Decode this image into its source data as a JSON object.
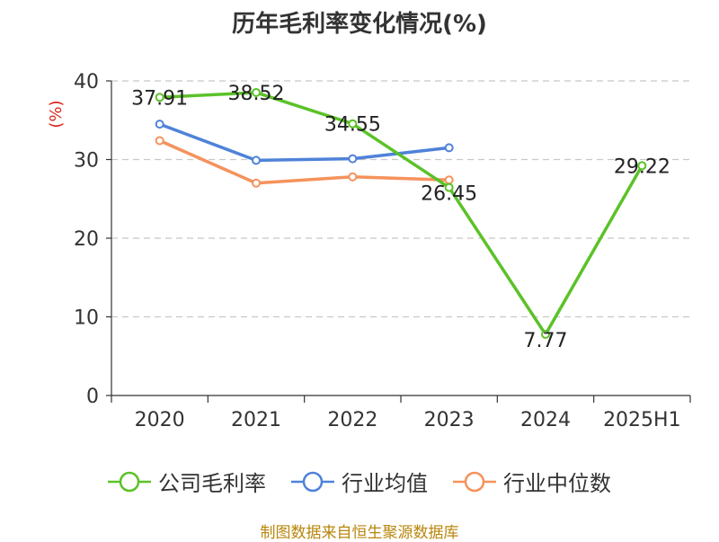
{
  "chart_title": "历年毛利率变化情况(%)",
  "footer_source": "制图数据来自恒生聚源数据库",
  "chart_data": {
    "type": "line",
    "title": "历年毛利率变化情况(%)",
    "xlabel": "",
    "ylabel": "(%)",
    "categories": [
      "2020",
      "2021",
      "2022",
      "2023",
      "2024",
      "2025H1"
    ],
    "ylim": [
      0,
      40
    ],
    "yticks": [
      0,
      10,
      20,
      30,
      40
    ],
    "grid": true,
    "legend_position": "bottom",
    "series": [
      {
        "name": "公司毛利率",
        "color": "#5bc228",
        "values": [
          37.91,
          38.52,
          34.55,
          26.45,
          7.77,
          29.22
        ],
        "labels": [
          "37.91",
          "38.52",
          "34.55",
          "26.45",
          "7.77",
          "29.22"
        ]
      },
      {
        "name": "行业均值",
        "color": "#4f82d9",
        "values": [
          34.5,
          29.9,
          30.1,
          31.5,
          null,
          null
        ]
      },
      {
        "name": "行业中位数",
        "color": "#f5925c",
        "values": [
          32.4,
          27.0,
          27.8,
          27.4,
          null,
          null
        ]
      }
    ]
  }
}
